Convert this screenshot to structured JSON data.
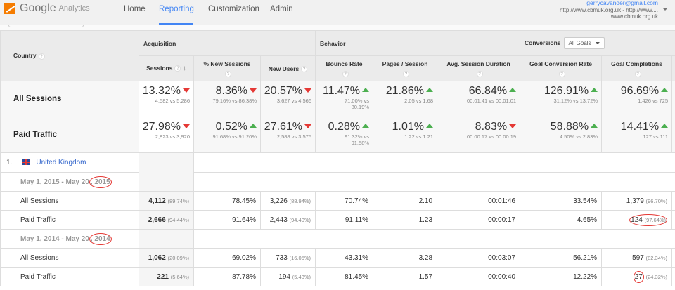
{
  "app": {
    "brand": "Google",
    "product": "Analytics"
  },
  "nav": [
    "Home",
    "Reporting",
    "Customization",
    "Admin"
  ],
  "account": {
    "email": "gerrycavander@gmail.com",
    "property": "http://www.cbmuk.org.uk - http://www....",
    "view": "www.cbmuk.org.uk"
  },
  "headers": {
    "country": "Country",
    "acquisition": "Acquisition",
    "behavior": "Behavior",
    "conversions": "Conversions",
    "goal_select": "All Goals",
    "cols": [
      "Sessions",
      "% New Sessions",
      "New Users",
      "Bounce Rate",
      "Pages / Session",
      "Avg. Session Duration",
      "Goal Conversion Rate",
      "Goal Completions"
    ]
  },
  "summary": [
    {
      "label": "All Sessions",
      "cells": [
        {
          "v": "13.32%",
          "d": "down",
          "s": "4,582 vs 5,286"
        },
        {
          "v": "8.36%",
          "d": "down",
          "s": "79.16% vs 86.38%"
        },
        {
          "v": "20.57%",
          "d": "down",
          "s": "3,627 vs 4,566"
        },
        {
          "v": "11.47%",
          "d": "up",
          "s": "71.00% vs",
          "s2": "80.19%"
        },
        {
          "v": "21.86%",
          "d": "up",
          "s": "2.05 vs 1.68"
        },
        {
          "v": "66.84%",
          "d": "up",
          "s": "00:01:41 vs 00:01:01"
        },
        {
          "v": "126.91%",
          "d": "up",
          "s": "31.12% vs 13.72%"
        },
        {
          "v": "96.69%",
          "d": "up",
          "s": "1,426 vs 725"
        }
      ]
    },
    {
      "label": "Paid Traffic",
      "cells": [
        {
          "v": "27.98%",
          "d": "down",
          "s": "2,823 vs 3,920"
        },
        {
          "v": "0.52%",
          "d": "up",
          "s": "91.68% vs 91.20%"
        },
        {
          "v": "27.61%",
          "d": "down",
          "s": "2,588 vs 3,575"
        },
        {
          "v": "0.28%",
          "d": "up",
          "s": "91.32% vs",
          "s2": "91.58%"
        },
        {
          "v": "1.01%",
          "d": "up",
          "s": "1.22 vs 1.21"
        },
        {
          "v": "8.83%",
          "d": "down",
          "s": "00:00:17 vs 00:00:19"
        },
        {
          "v": "58.88%",
          "d": "up",
          "s": "4.50% vs 2.83%"
        },
        {
          "v": "14.41%",
          "d": "up",
          "s": "127 vs 111"
        }
      ]
    }
  ],
  "country": {
    "index": "1.",
    "name": "United Kingdom"
  },
  "periods": [
    {
      "range_a": "May 1, 2015 - May 20",
      "range_b": ", 2015",
      "rows": [
        {
          "label": "All Sessions",
          "sessions": "4,112",
          "sessions_pct": "(89.74%)",
          "new_sessions": "78.45%",
          "new_users": "3,226",
          "new_users_pct": "(88.94%)",
          "bounce": "70.74%",
          "pages": "2.10",
          "duration": "00:01:46",
          "gcr": "33.54%",
          "gc": "1,379",
          "gc_pct": "(96.70%)"
        },
        {
          "label": "Paid Traffic",
          "sessions": "2,666",
          "sessions_pct": "(94.44%)",
          "new_sessions": "91.64%",
          "new_users": "2,443",
          "new_users_pct": "(94.40%)",
          "bounce": "91.11%",
          "pages": "1.23",
          "duration": "00:00:17",
          "gcr": "4.65%",
          "gc": "124",
          "gc_pct": "(97.64%)"
        }
      ]
    },
    {
      "range_a": "May 1, 2014 - May 20",
      "range_b": ", 2014",
      "rows": [
        {
          "label": "All Sessions",
          "sessions": "1,062",
          "sessions_pct": "(20.09%)",
          "new_sessions": "69.02%",
          "new_users": "733",
          "new_users_pct": "(16.05%)",
          "bounce": "43.31%",
          "pages": "3.28",
          "duration": "00:03:07",
          "gcr": "56.21%",
          "gc": "597",
          "gc_pct": "(82.34%)"
        },
        {
          "label": "Paid Traffic",
          "sessions": "221",
          "sessions_pct": "(5.64%)",
          "new_sessions": "87.78%",
          "new_users": "194",
          "new_users_pct": "(5.43%)",
          "bounce": "81.45%",
          "pages": "1.57",
          "duration": "00:00:40",
          "gcr": "12.22%",
          "gc": "27",
          "gc_pct": "(24.32%)"
        }
      ]
    }
  ],
  "colors": {
    "accent": "#4285f4",
    "up": "#4caf50",
    "down": "#e53935",
    "annotation": "#e53935"
  }
}
